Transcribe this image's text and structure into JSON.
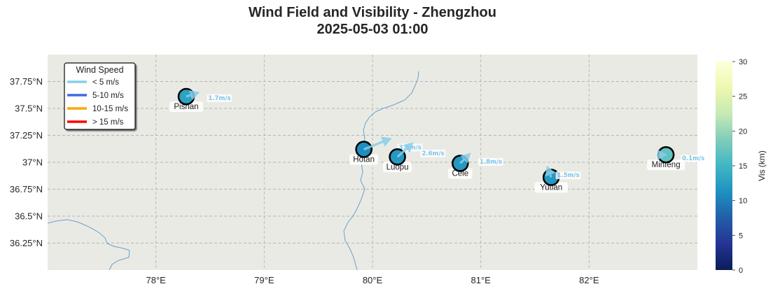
{
  "title": {
    "line1": "Wind Field and Visibility - Zhengzhou",
    "line2": "2025-05-03 01:00"
  },
  "colors": {
    "background": "#eaeae4",
    "grid": "#b4b4b4",
    "river": "#6aa0cc",
    "arrow": "#87ceeb",
    "speed_text": "#7cc4ea"
  },
  "map": {
    "lon_range": [
      77.0,
      83.0
    ],
    "lat_range": [
      36.0,
      38.0
    ],
    "lon_ticks": [
      {
        "value": 78,
        "label": "78°E"
      },
      {
        "value": 79,
        "label": "79°E"
      },
      {
        "value": 80,
        "label": "80°E"
      },
      {
        "value": 81,
        "label": "81°E"
      },
      {
        "value": 82,
        "label": "82°E"
      }
    ],
    "lat_ticks": [
      {
        "value": 36.25,
        "label": "36.25°N"
      },
      {
        "value": 36.5,
        "label": "36.5°N"
      },
      {
        "value": 36.75,
        "label": "36.75°N"
      },
      {
        "value": 37.0,
        "label": "37°N"
      },
      {
        "value": 37.25,
        "label": "37.25°N"
      },
      {
        "value": 37.5,
        "label": "37.5°N"
      },
      {
        "value": 37.75,
        "label": "37.75°N"
      }
    ],
    "grid": true
  },
  "legend": {
    "title": "Wind Speed",
    "placement": "top-left",
    "entries": [
      {
        "label": "< 5 m/s",
        "color": "#87ceeb"
      },
      {
        "label": "5-10 m/s",
        "color": "#4169e1"
      },
      {
        "label": "10-15 m/s",
        "color": "#ffa500"
      },
      {
        "label": "> 15 m/s",
        "color": "#ff0000"
      }
    ]
  },
  "colorbar": {
    "label": "Vis (km)",
    "min": 0,
    "max": 30,
    "ticks": [
      "0",
      "5",
      "10",
      "15",
      "20",
      "25",
      "30"
    ],
    "stops": [
      "#081d58",
      "#253494",
      "#225ea8",
      "#1d91c0",
      "#41b6c4",
      "#7fcdbb",
      "#c7e9b4",
      "#edf8b1",
      "#ffffd9"
    ]
  },
  "stations": [
    {
      "name": "Pishan",
      "lon": 78.28,
      "lat": 37.61,
      "vis": 13,
      "wind_speed": 1.7,
      "speed_label": "1.7m/s",
      "wind_to_dir": 72
    },
    {
      "name": "Hotan",
      "lon": 79.92,
      "lat": 37.12,
      "vis": 11,
      "wind_speed": 3.6,
      "speed_label": "3.6m/s",
      "wind_to_dir": 68
    },
    {
      "name": "Luopu",
      "lon": 80.23,
      "lat": 37.05,
      "vis": 12,
      "wind_speed": 2.6,
      "speed_label": "2.6m/s",
      "wind_to_dir": 48
    },
    {
      "name": "Cele",
      "lon": 80.81,
      "lat": 36.99,
      "vis": 12,
      "wind_speed": 1.8,
      "speed_label": "1.8m/s",
      "wind_to_dir": 45
    },
    {
      "name": "Yutian",
      "lon": 81.65,
      "lat": 36.86,
      "vis": 12,
      "wind_speed": 1.5,
      "speed_label": "1.5m/s",
      "wind_to_dir": 340
    },
    {
      "name": "Minfeng",
      "lon": 82.71,
      "lat": 37.07,
      "vis": 17,
      "wind_speed": 0.1,
      "speed_label": "0.1m/s",
      "wind_to_dir": 90
    }
  ]
}
